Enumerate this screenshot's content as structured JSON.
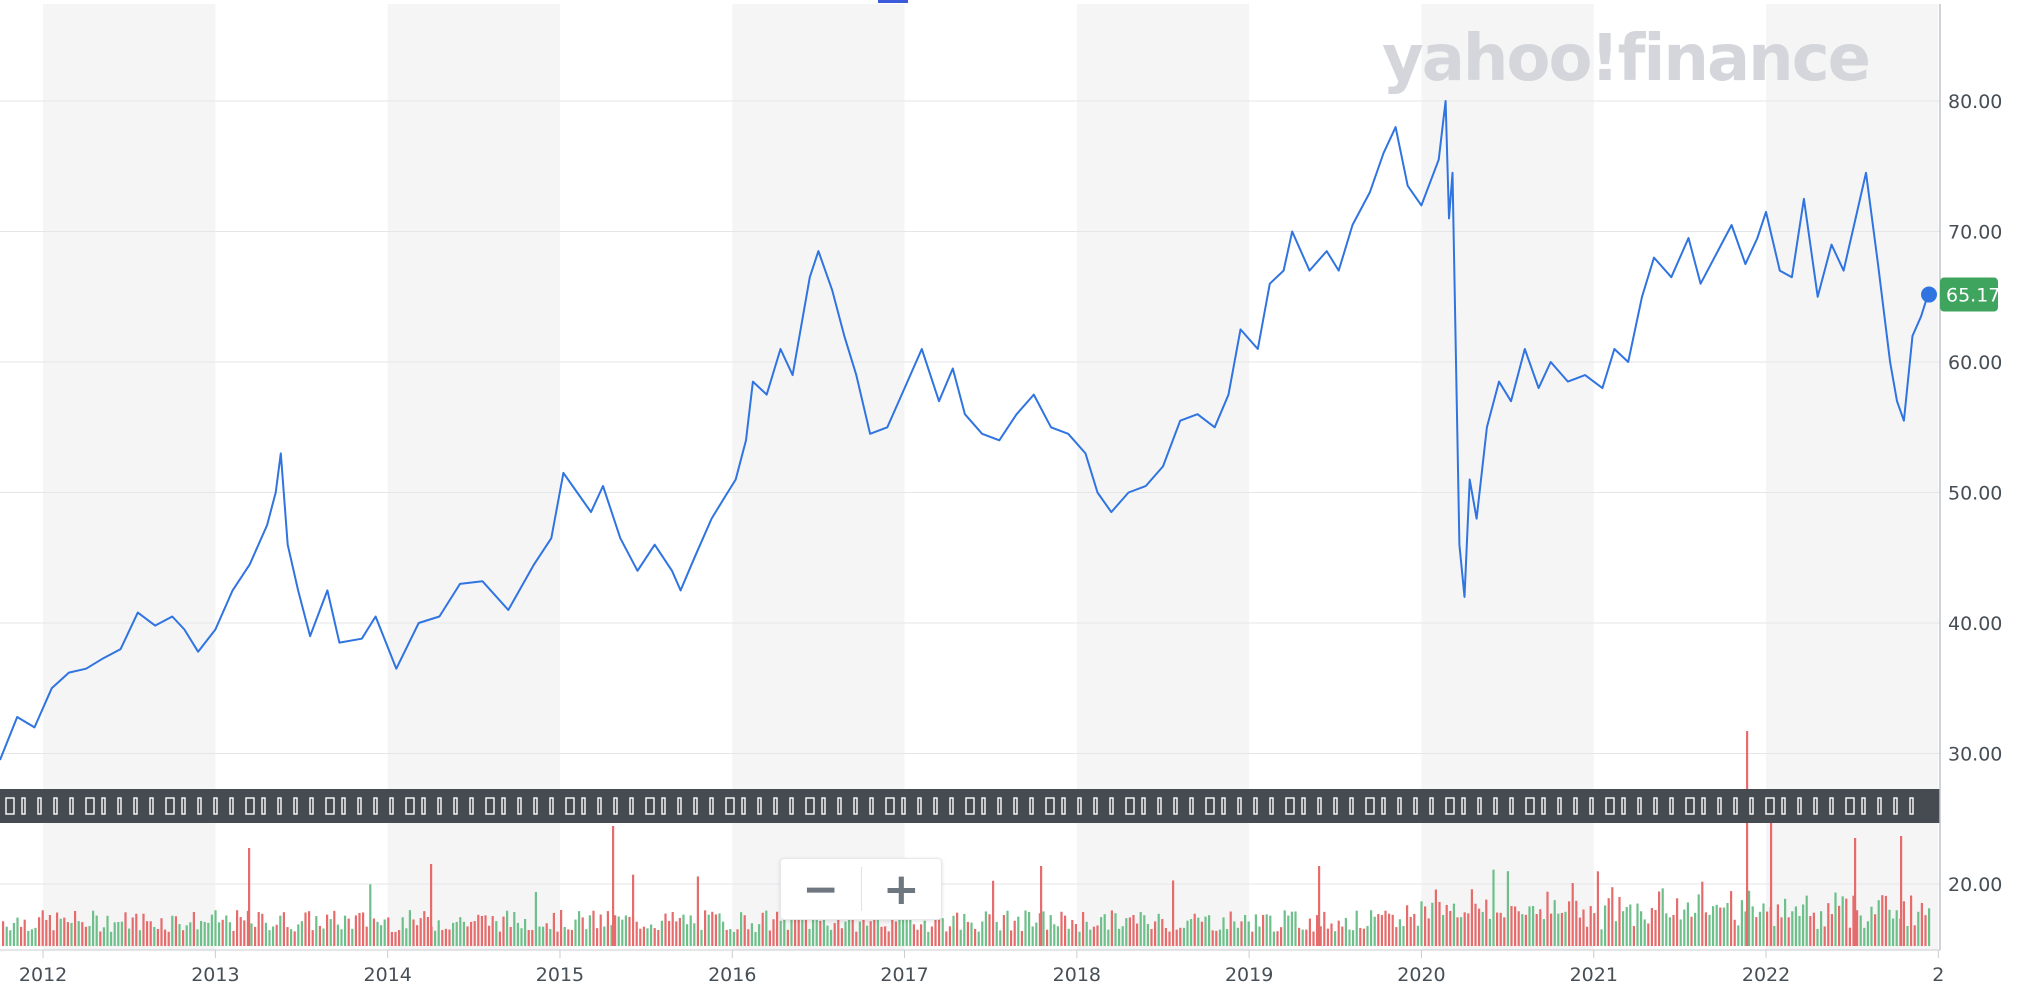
{
  "brand": {
    "watermark": "yahoo!finance"
  },
  "last_price_label": "65.17",
  "zoom": {
    "minus_label": "−",
    "plus_label": "+"
  },
  "colors": {
    "line": "#2f74e0",
    "up": "#6dc08a",
    "down": "#e66b6b",
    "badge": "#3fa45e",
    "shade": "#f5f5f6",
    "navigator": "#464b51"
  },
  "chart_data": {
    "type": "line",
    "title": "",
    "xlabel": "",
    "ylabel": "",
    "x_ticks": [
      "2012",
      "2013",
      "2014",
      "2015",
      "2016",
      "2017",
      "2018",
      "2019",
      "2020",
      "2021",
      "2022",
      "2"
    ],
    "y_ticks": [
      "20.00",
      "30.00",
      "40.00",
      "50.00",
      "60.00",
      "70.00",
      "80.00"
    ],
    "ylim": [
      15,
      88
    ],
    "xlim": [
      2011.75,
      2022.94
    ],
    "grid": true,
    "last_value": 65.17,
    "series": [
      {
        "points": [
          [
            2011.75,
            29.5
          ],
          [
            2011.85,
            32.8
          ],
          [
            2011.95,
            32.0
          ],
          [
            2012.05,
            35.0
          ],
          [
            2012.15,
            36.2
          ],
          [
            2012.25,
            36.5
          ],
          [
            2012.35,
            37.3
          ],
          [
            2012.45,
            38.0
          ],
          [
            2012.55,
            40.8
          ],
          [
            2012.65,
            39.8
          ],
          [
            2012.75,
            40.5
          ],
          [
            2012.82,
            39.5
          ],
          [
            2012.9,
            37.8
          ],
          [
            2013.0,
            39.5
          ],
          [
            2013.1,
            42.5
          ],
          [
            2013.2,
            44.5
          ],
          [
            2013.3,
            47.5
          ],
          [
            2013.35,
            50.0
          ],
          [
            2013.38,
            53.0
          ],
          [
            2013.42,
            46.0
          ],
          [
            2013.48,
            42.5
          ],
          [
            2013.55,
            39.0
          ],
          [
            2013.65,
            42.5
          ],
          [
            2013.72,
            38.5
          ],
          [
            2013.85,
            38.8
          ],
          [
            2013.93,
            40.5
          ],
          [
            2014.05,
            36.5
          ],
          [
            2014.18,
            40.0
          ],
          [
            2014.3,
            40.5
          ],
          [
            2014.42,
            43.0
          ],
          [
            2014.55,
            43.2
          ],
          [
            2014.7,
            41.0
          ],
          [
            2014.85,
            44.5
          ],
          [
            2014.95,
            46.5
          ],
          [
            2015.02,
            51.5
          ],
          [
            2015.1,
            50.0
          ],
          [
            2015.18,
            48.5
          ],
          [
            2015.25,
            50.5
          ],
          [
            2015.35,
            46.5
          ],
          [
            2015.45,
            44.0
          ],
          [
            2015.55,
            46.0
          ],
          [
            2015.65,
            44.0
          ],
          [
            2015.7,
            42.5
          ],
          [
            2015.78,
            45.0
          ],
          [
            2015.88,
            48.0
          ],
          [
            2015.95,
            49.5
          ],
          [
            2016.02,
            51.0
          ],
          [
            2016.08,
            54.0
          ],
          [
            2016.12,
            58.5
          ],
          [
            2016.2,
            57.5
          ],
          [
            2016.28,
            61.0
          ],
          [
            2016.35,
            59.0
          ],
          [
            2016.45,
            66.5
          ],
          [
            2016.5,
            68.5
          ],
          [
            2016.58,
            65.5
          ],
          [
            2016.65,
            62.0
          ],
          [
            2016.72,
            59.0
          ],
          [
            2016.8,
            54.5
          ],
          [
            2016.9,
            55.0
          ],
          [
            2017.0,
            58.0
          ],
          [
            2017.1,
            61.0
          ],
          [
            2017.2,
            57.0
          ],
          [
            2017.28,
            59.5
          ],
          [
            2017.35,
            56.0
          ],
          [
            2017.45,
            54.5
          ],
          [
            2017.55,
            54.0
          ],
          [
            2017.65,
            56.0
          ],
          [
            2017.75,
            57.5
          ],
          [
            2017.85,
            55.0
          ],
          [
            2017.95,
            54.5
          ],
          [
            2018.05,
            53.0
          ],
          [
            2018.12,
            50.0
          ],
          [
            2018.2,
            48.5
          ],
          [
            2018.3,
            50.0
          ],
          [
            2018.4,
            50.5
          ],
          [
            2018.5,
            52.0
          ],
          [
            2018.6,
            55.5
          ],
          [
            2018.7,
            56.0
          ],
          [
            2018.8,
            55.0
          ],
          [
            2018.88,
            57.5
          ],
          [
            2018.95,
            62.5
          ],
          [
            2019.05,
            61.0
          ],
          [
            2019.12,
            66.0
          ],
          [
            2019.2,
            67.0
          ],
          [
            2019.25,
            70.0
          ],
          [
            2019.35,
            67.0
          ],
          [
            2019.45,
            68.5
          ],
          [
            2019.52,
            67.0
          ],
          [
            2019.6,
            70.5
          ],
          [
            2019.7,
            73.0
          ],
          [
            2019.78,
            76.0
          ],
          [
            2019.85,
            78.0
          ],
          [
            2019.92,
            73.5
          ],
          [
            2020.0,
            72.0
          ],
          [
            2020.1,
            75.5
          ],
          [
            2020.14,
            80.0
          ],
          [
            2020.16,
            71.0
          ],
          [
            2020.18,
            74.5
          ],
          [
            2020.22,
            46.0
          ],
          [
            2020.25,
            42.0
          ],
          [
            2020.28,
            51.0
          ],
          [
            2020.32,
            48.0
          ],
          [
            2020.38,
            55.0
          ],
          [
            2020.45,
            58.5
          ],
          [
            2020.52,
            57.0
          ],
          [
            2020.6,
            61.0
          ],
          [
            2020.68,
            58.0
          ],
          [
            2020.75,
            60.0
          ],
          [
            2020.85,
            58.5
          ],
          [
            2020.95,
            59.0
          ],
          [
            2021.05,
            58.0
          ],
          [
            2021.12,
            61.0
          ],
          [
            2021.2,
            60.0
          ],
          [
            2021.28,
            65.0
          ],
          [
            2021.35,
            68.0
          ],
          [
            2021.45,
            66.5
          ],
          [
            2021.55,
            69.5
          ],
          [
            2021.62,
            66.0
          ],
          [
            2021.72,
            68.5
          ],
          [
            2021.8,
            70.5
          ],
          [
            2021.88,
            67.5
          ],
          [
            2021.95,
            69.5
          ],
          [
            2022.0,
            71.5
          ],
          [
            2022.08,
            67.0
          ],
          [
            2022.15,
            66.5
          ],
          [
            2022.22,
            72.5
          ],
          [
            2022.3,
            65.0
          ],
          [
            2022.38,
            69.0
          ],
          [
            2022.45,
            67.0
          ],
          [
            2022.52,
            71.0
          ],
          [
            2022.58,
            74.5
          ],
          [
            2022.65,
            67.5
          ],
          [
            2022.72,
            60.0
          ],
          [
            2022.76,
            57.0
          ],
          [
            2022.8,
            55.5
          ],
          [
            2022.85,
            62.0
          ],
          [
            2022.9,
            63.5
          ],
          [
            2022.94,
            65.17
          ]
        ]
      }
    ]
  }
}
